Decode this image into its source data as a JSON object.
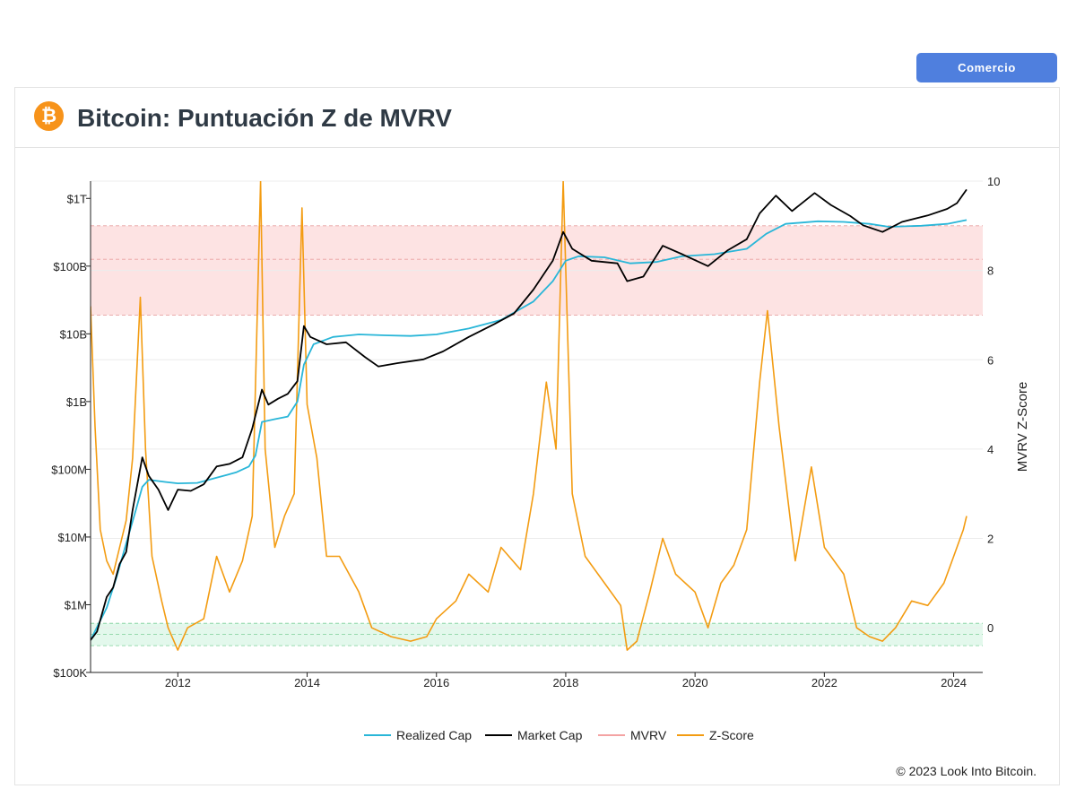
{
  "header": {
    "trade_button": "Comercio",
    "title": "Bitcoin: Puntuación Z de MVRV",
    "logo_glyph": "₿"
  },
  "footer": {
    "copyright": "© 2023 Look Into Bitcoin."
  },
  "colors": {
    "realized_cap": "#29b6d8",
    "market_cap": "#000000",
    "mvrv": "#f4a3a3",
    "zscore": "#f39c12",
    "top_band": "#fde3e3",
    "bottom_band": "#e3f8ec",
    "brand": "#f7931a",
    "button": "#4f7fde"
  },
  "chart_data": {
    "type": "line",
    "x_ticks": [
      "2012",
      "2014",
      "2016",
      "2018",
      "2020",
      "2022",
      "2024"
    ],
    "x_range": [
      2010.65,
      2024.45
    ],
    "y_left": {
      "scale": "log",
      "range_usd": [
        100000,
        1800000000000
      ],
      "ticks": [
        {
          "label": "$100K",
          "value": 100000.0
        },
        {
          "label": "$1M",
          "value": 1000000.0
        },
        {
          "label": "$10M",
          "value": 10000000.0
        },
        {
          "label": "$100M",
          "value": 100000000.0
        },
        {
          "label": "$1B",
          "value": 1000000000.0
        },
        {
          "label": "$10B",
          "value": 10000000000.0
        },
        {
          "label": "$100B",
          "value": 100000000000.0
        },
        {
          "label": "$1T",
          "value": 1000000000000.0
        }
      ]
    },
    "y_right": {
      "label": "MVRV Z-Score",
      "range": [
        -1,
        10
      ],
      "ticks": [
        0,
        2,
        4,
        6,
        8,
        10
      ]
    },
    "bands": {
      "top_zone": [
        7,
        9
      ],
      "bottom_zone": [
        -0.4,
        0.1
      ]
    },
    "legend": [
      "Realized Cap",
      "Market Cap",
      "MVRV",
      "Z-Score"
    ],
    "legend_placement": "bottom-center",
    "grid": true,
    "series": [
      {
        "name": "Realized Cap",
        "axis": "left",
        "points": [
          [
            2010.65,
            300000
          ],
          [
            2010.9,
            900000
          ],
          [
            2011.05,
            2500000
          ],
          [
            2011.2,
            8000000
          ],
          [
            2011.35,
            25000000
          ],
          [
            2011.45,
            55000000
          ],
          [
            2011.55,
            70000000
          ],
          [
            2011.8,
            65000000
          ],
          [
            2012.0,
            62000000
          ],
          [
            2012.3,
            63000000
          ],
          [
            2012.6,
            75000000
          ],
          [
            2012.9,
            90000000
          ],
          [
            2013.1,
            110000000
          ],
          [
            2013.2,
            160000000
          ],
          [
            2013.3,
            500000000
          ],
          [
            2013.5,
            550000000
          ],
          [
            2013.7,
            600000000
          ],
          [
            2013.85,
            1000000000
          ],
          [
            2013.95,
            3500000000
          ],
          [
            2014.1,
            7000000000
          ],
          [
            2014.4,
            9000000000
          ],
          [
            2014.8,
            9800000000
          ],
          [
            2015.2,
            9500000000
          ],
          [
            2015.6,
            9300000000
          ],
          [
            2016.0,
            9800000000
          ],
          [
            2016.5,
            12000000000
          ],
          [
            2017.0,
            16000000000
          ],
          [
            2017.5,
            30000000000
          ],
          [
            2017.8,
            60000000000
          ],
          [
            2018.0,
            120000000000
          ],
          [
            2018.2,
            140000000000
          ],
          [
            2018.6,
            135000000000
          ],
          [
            2019.0,
            110000000000
          ],
          [
            2019.4,
            115000000000
          ],
          [
            2019.8,
            140000000000
          ],
          [
            2020.3,
            150000000000
          ],
          [
            2020.8,
            180000000000
          ],
          [
            2021.1,
            300000000000
          ],
          [
            2021.4,
            420000000000
          ],
          [
            2021.9,
            460000000000
          ],
          [
            2022.3,
            450000000000
          ],
          [
            2022.7,
            420000000000
          ],
          [
            2023.0,
            380000000000
          ],
          [
            2023.5,
            395000000000
          ],
          [
            2023.9,
            420000000000
          ],
          [
            2024.2,
            480000000000
          ]
        ]
      },
      {
        "name": "Market Cap",
        "axis": "left",
        "points": [
          [
            2010.65,
            300000
          ],
          [
            2010.75,
            400000
          ],
          [
            2010.9,
            1300000
          ],
          [
            2011.0,
            1800000
          ],
          [
            2011.1,
            4000000
          ],
          [
            2011.2,
            6000000
          ],
          [
            2011.3,
            25000000
          ],
          [
            2011.45,
            150000000
          ],
          [
            2011.55,
            80000000
          ],
          [
            2011.7,
            50000000
          ],
          [
            2011.85,
            25000000
          ],
          [
            2012.0,
            50000000
          ],
          [
            2012.2,
            48000000
          ],
          [
            2012.4,
            60000000
          ],
          [
            2012.6,
            110000000
          ],
          [
            2012.8,
            120000000
          ],
          [
            2013.0,
            150000000
          ],
          [
            2013.15,
            400000000
          ],
          [
            2013.3,
            1500000000
          ],
          [
            2013.4,
            900000000
          ],
          [
            2013.55,
            1100000000
          ],
          [
            2013.7,
            1300000000
          ],
          [
            2013.85,
            2000000000
          ],
          [
            2013.95,
            13000000000
          ],
          [
            2014.05,
            9000000000
          ],
          [
            2014.3,
            7000000000
          ],
          [
            2014.6,
            7500000000
          ],
          [
            2014.9,
            4500000000
          ],
          [
            2015.1,
            3300000000
          ],
          [
            2015.4,
            3700000000
          ],
          [
            2015.8,
            4200000000
          ],
          [
            2016.1,
            5500000000
          ],
          [
            2016.5,
            9000000000
          ],
          [
            2016.9,
            14000000000
          ],
          [
            2017.2,
            20000000000
          ],
          [
            2017.5,
            45000000000
          ],
          [
            2017.8,
            120000000000
          ],
          [
            2017.96,
            320000000000
          ],
          [
            2018.1,
            180000000000
          ],
          [
            2018.4,
            120000000000
          ],
          [
            2018.8,
            110000000000
          ],
          [
            2018.95,
            60000000000
          ],
          [
            2019.2,
            70000000000
          ],
          [
            2019.5,
            200000000000
          ],
          [
            2019.8,
            150000000000
          ],
          [
            2020.2,
            100000000000
          ],
          [
            2020.5,
            170000000000
          ],
          [
            2020.8,
            250000000000
          ],
          [
            2021.0,
            600000000000
          ],
          [
            2021.25,
            1100000000000
          ],
          [
            2021.5,
            650000000000
          ],
          [
            2021.85,
            1200000000000
          ],
          [
            2022.1,
            800000000000
          ],
          [
            2022.4,
            550000000000
          ],
          [
            2022.6,
            400000000000
          ],
          [
            2022.9,
            320000000000
          ],
          [
            2023.2,
            450000000000
          ],
          [
            2023.6,
            560000000000
          ],
          [
            2023.9,
            700000000000
          ],
          [
            2024.05,
            850000000000
          ],
          [
            2024.2,
            1350000000000
          ]
        ]
      },
      {
        "name": "Z-Score",
        "axis": "right",
        "points": [
          [
            2010.65,
            7.2
          ],
          [
            2010.72,
            4.5
          ],
          [
            2010.8,
            2.2
          ],
          [
            2010.9,
            1.5
          ],
          [
            2011.0,
            1.2
          ],
          [
            2011.1,
            1.8
          ],
          [
            2011.2,
            2.4
          ],
          [
            2011.3,
            3.8
          ],
          [
            2011.42,
            7.4
          ],
          [
            2011.5,
            4.0
          ],
          [
            2011.6,
            1.6
          ],
          [
            2011.75,
            0.6
          ],
          [
            2011.85,
            0.0
          ],
          [
            2012.0,
            -0.5
          ],
          [
            2012.15,
            0.0
          ],
          [
            2012.4,
            0.2
          ],
          [
            2012.6,
            1.6
          ],
          [
            2012.8,
            0.8
          ],
          [
            2013.0,
            1.5
          ],
          [
            2013.15,
            2.5
          ],
          [
            2013.28,
            10.0
          ],
          [
            2013.35,
            4.0
          ],
          [
            2013.5,
            1.8
          ],
          [
            2013.65,
            2.5
          ],
          [
            2013.8,
            3.0
          ],
          [
            2013.92,
            9.4
          ],
          [
            2014.0,
            5.0
          ],
          [
            2014.15,
            3.8
          ],
          [
            2014.3,
            1.6
          ],
          [
            2014.5,
            1.6
          ],
          [
            2014.8,
            0.8
          ],
          [
            2015.0,
            0.0
          ],
          [
            2015.3,
            -0.2
          ],
          [
            2015.6,
            -0.3
          ],
          [
            2015.85,
            -0.2
          ],
          [
            2016.0,
            0.2
          ],
          [
            2016.3,
            0.6
          ],
          [
            2016.5,
            1.2
          ],
          [
            2016.8,
            0.8
          ],
          [
            2017.0,
            1.8
          ],
          [
            2017.3,
            1.3
          ],
          [
            2017.5,
            3.0
          ],
          [
            2017.7,
            5.5
          ],
          [
            2017.85,
            4.0
          ],
          [
            2017.96,
            10.0
          ],
          [
            2018.1,
            3.0
          ],
          [
            2018.3,
            1.6
          ],
          [
            2018.6,
            1.0
          ],
          [
            2018.85,
            0.5
          ],
          [
            2018.95,
            -0.5
          ],
          [
            2019.1,
            -0.3
          ],
          [
            2019.3,
            0.8
          ],
          [
            2019.5,
            2.0
          ],
          [
            2019.7,
            1.2
          ],
          [
            2020.0,
            0.8
          ],
          [
            2020.2,
            0.0
          ],
          [
            2020.4,
            1.0
          ],
          [
            2020.6,
            1.4
          ],
          [
            2020.8,
            2.2
          ],
          [
            2021.0,
            5.5
          ],
          [
            2021.12,
            7.1
          ],
          [
            2021.3,
            4.5
          ],
          [
            2021.55,
            1.5
          ],
          [
            2021.8,
            3.6
          ],
          [
            2022.0,
            1.8
          ],
          [
            2022.3,
            1.2
          ],
          [
            2022.5,
            0.0
          ],
          [
            2022.7,
            -0.2
          ],
          [
            2022.9,
            -0.3
          ],
          [
            2023.1,
            0.0
          ],
          [
            2023.35,
            0.6
          ],
          [
            2023.6,
            0.5
          ],
          [
            2023.85,
            1.0
          ],
          [
            2024.0,
            1.6
          ],
          [
            2024.15,
            2.2
          ],
          [
            2024.2,
            2.5
          ]
        ]
      }
    ]
  }
}
